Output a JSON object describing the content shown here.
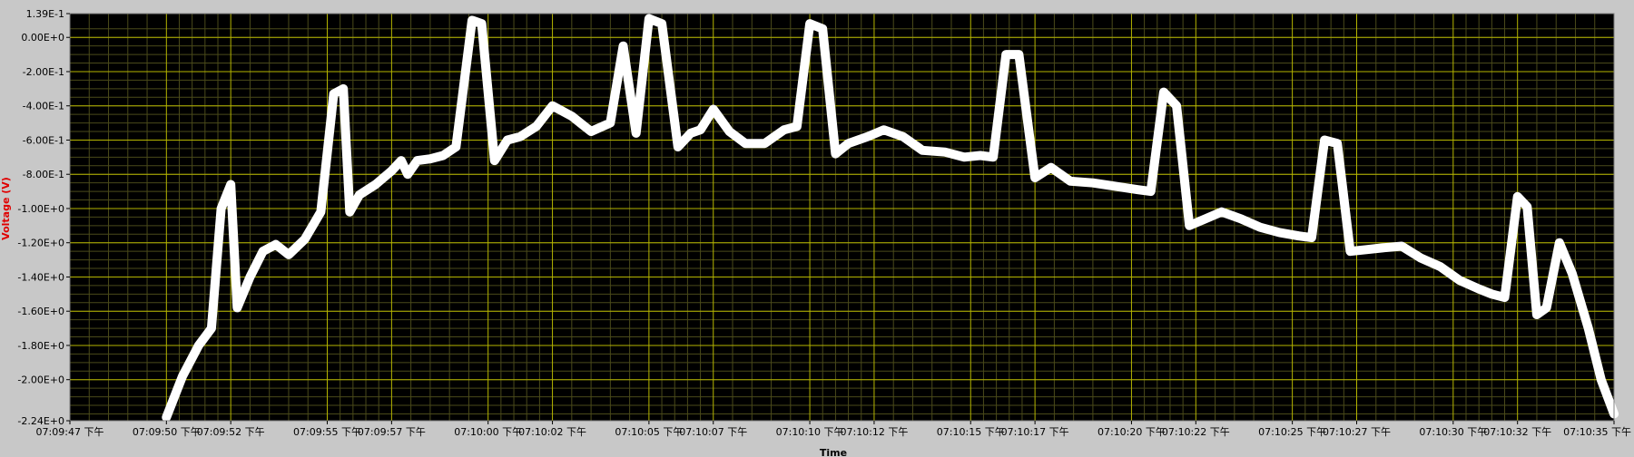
{
  "chart_data": {
    "type": "line",
    "title": "",
    "xlabel": "Time",
    "ylabel": "Voltage (V)",
    "ylim": [
      -2.24,
      0.139
    ],
    "xlim": [
      "07:09:47",
      "07:10:35"
    ],
    "grid": true,
    "colors": {
      "plot_background": "#000000",
      "grid_major": "#b4b400",
      "grid_minor": "#4a4a1a",
      "trace": "#ffffff",
      "ylabel": "#e00000",
      "frame": "#c8c8c8"
    },
    "y_ticks": [
      {
        "value": 0.139,
        "label": "1.39E-1"
      },
      {
        "value": 0.0,
        "label": "0.00E+0"
      },
      {
        "value": -0.2,
        "label": "-2.00E-1"
      },
      {
        "value": -0.4,
        "label": "-4.00E-1"
      },
      {
        "value": -0.6,
        "label": "-6.00E-1"
      },
      {
        "value": -0.8,
        "label": "-8.00E-1"
      },
      {
        "value": -1.0,
        "label": "-1.00E+0"
      },
      {
        "value": -1.2,
        "label": "-1.20E+0"
      },
      {
        "value": -1.4,
        "label": "-1.40E+0"
      },
      {
        "value": -1.6,
        "label": "-1.60E+0"
      },
      {
        "value": -1.8,
        "label": "-1.80E+0"
      },
      {
        "value": -2.0,
        "label": "-2.00E+0"
      },
      {
        "value": -2.24,
        "label": "-2.24E+0"
      }
    ],
    "x_ticks": [
      {
        "value": "07:09:47",
        "label": "07:09:47 下午"
      },
      {
        "value": "07:09:50",
        "label": "07:09:50 下午"
      },
      {
        "value": "07:09:52",
        "label": "07:09:52 下午"
      },
      {
        "value": "07:09:55",
        "label": "07:09:55 下午"
      },
      {
        "value": "07:09:57",
        "label": "07:09:57 下午"
      },
      {
        "value": "07:10:00",
        "label": "07:10:00 下午"
      },
      {
        "value": "07:10:02",
        "label": "07:10:02 下午"
      },
      {
        "value": "07:10:05",
        "label": "07:10:05 下午"
      },
      {
        "value": "07:10:07",
        "label": "07:10:07 下午"
      },
      {
        "value": "07:10:10",
        "label": "07:10:10 下午"
      },
      {
        "value": "07:10:12",
        "label": "07:10:12 下午"
      },
      {
        "value": "07:10:15",
        "label": "07:10:15 下午"
      },
      {
        "value": "07:10:17",
        "label": "07:10:17 下午"
      },
      {
        "value": "07:10:20",
        "label": "07:10:20 下午"
      },
      {
        "value": "07:10:22",
        "label": "07:10:22 下午"
      },
      {
        "value": "07:10:25",
        "label": "07:10:25 下午"
      },
      {
        "value": "07:10:27",
        "label": "07:10:27 下午"
      },
      {
        "value": "07:10:30",
        "label": "07:10:30 下午"
      },
      {
        "value": "07:10:32",
        "label": "07:10:32 下午"
      },
      {
        "value": "07:10:35",
        "label": "07:10:35 下午"
      }
    ],
    "series": [
      {
        "x": [
          "07:09:50.0",
          "07:09:50.5",
          "07:09:51.0",
          "07:09:51.4",
          "07:09:51.7",
          "07:09:52.0",
          "07:09:52.2",
          "07:09:52.6",
          "07:09:53.0",
          "07:09:53.4",
          "07:09:53.8",
          "07:09:54.3",
          "07:09:54.8",
          "07:09:55.2",
          "07:09:55.5",
          "07:09:55.7",
          "07:09:56.0",
          "07:09:56.5",
          "07:09:57.0",
          "07:09:57.3",
          "07:09:57.5",
          "07:09:57.8",
          "07:09:58.2",
          "07:09:58.6",
          "07:09:59.0",
          "07:09:59.5",
          "07:09:59.8",
          "07:10:00.2",
          "07:10:00.6",
          "07:10:01.0",
          "07:10:01.5",
          "07:10:02.0",
          "07:10:02.6",
          "07:10:03.2",
          "07:10:03.8",
          "07:10:04.2",
          "07:10:04.6",
          "07:10:05.0",
          "07:10:05.4",
          "07:10:05.9",
          "07:10:06.3",
          "07:10:06.6",
          "07:10:07.0",
          "07:10:07.5",
          "07:10:08.0",
          "07:10:08.6",
          "07:10:09.2",
          "07:10:09.6",
          "07:10:10.0",
          "07:10:10.4",
          "07:10:10.8",
          "07:10:11.2",
          "07:10:11.8",
          "07:10:12.3",
          "07:10:12.9",
          "07:10:13.5",
          "07:10:14.2",
          "07:10:14.8",
          "07:10:15.3",
          "07:10:15.7",
          "07:10:16.1",
          "07:10:16.5",
          "07:10:17.0",
          "07:10:17.5",
          "07:10:18.1",
          "07:10:18.8",
          "07:10:19.5",
          "07:10:20.2",
          "07:10:20.6",
          "07:10:21.0",
          "07:10:21.4",
          "07:10:21.8",
          "07:10:22.3",
          "07:10:22.8",
          "07:10:23.4",
          "07:10:24.0",
          "07:10:24.6",
          "07:10:25.2",
          "07:10:25.6",
          "07:10:26.0",
          "07:10:26.4",
          "07:10:26.8",
          "07:10:27.3",
          "07:10:27.8",
          "07:10:28.4",
          "07:10:29.0",
          "07:10:29.6",
          "07:10:30.2",
          "07:10:30.8",
          "07:10:31.2",
          "07:10:31.6",
          "07:10:32.0",
          "07:10:32.3",
          "07:10:32.6",
          "07:10:32.9",
          "07:10:33.3",
          "07:10:33.7",
          "07:10:34.2",
          "07:10:34.6",
          "07:10:35.0"
        ],
        "values": [
          -2.22,
          -1.98,
          -1.8,
          -1.7,
          -1.0,
          -0.86,
          -1.58,
          -1.4,
          -1.25,
          -1.21,
          -1.27,
          -1.18,
          -1.02,
          -0.33,
          -0.3,
          -1.02,
          -0.92,
          -0.86,
          -0.78,
          -0.72,
          -0.8,
          -0.72,
          -0.71,
          -0.69,
          -0.64,
          0.1,
          0.08,
          -0.72,
          -0.6,
          -0.58,
          -0.52,
          -0.4,
          -0.46,
          -0.55,
          -0.5,
          -0.05,
          -0.56,
          0.11,
          0.08,
          -0.64,
          -0.56,
          -0.54,
          -0.42,
          -0.55,
          -0.62,
          -0.62,
          -0.54,
          -0.52,
          0.08,
          0.05,
          -0.68,
          -0.62,
          -0.58,
          -0.54,
          -0.58,
          -0.66,
          -0.67,
          -0.7,
          -0.69,
          -0.7,
          -0.1,
          -0.1,
          -0.82,
          -0.76,
          -0.84,
          -0.85,
          -0.87,
          -0.89,
          -0.9,
          -0.32,
          -0.4,
          -1.1,
          -1.06,
          -1.02,
          -1.06,
          -1.11,
          -1.14,
          -1.16,
          -1.17,
          -0.6,
          -0.62,
          -1.25,
          -1.24,
          -1.23,
          -1.22,
          -1.29,
          -1.34,
          -1.42,
          -1.47,
          -1.5,
          -1.52,
          -0.93,
          -0.99,
          -1.62,
          -1.58,
          -1.2,
          -1.38,
          -1.7,
          -2.0,
          -2.2
        ]
      }
    ]
  }
}
